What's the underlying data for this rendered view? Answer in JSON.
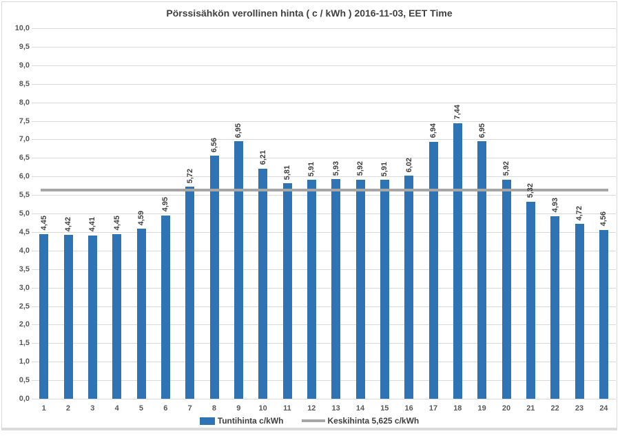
{
  "window": {
    "background": "#FFFFFF",
    "frame_border_color": "#D9D9D9",
    "bottom_strip_color": "#DBDBDB"
  },
  "chart_data": {
    "type": "bar",
    "title": "Pörssisähkön verollinen hinta ( c / kWh ) 2016-11-03, EET Time",
    "title_color": "#404040",
    "categories": [
      "1",
      "2",
      "3",
      "4",
      "5",
      "6",
      "7",
      "8",
      "9",
      "10",
      "11",
      "12",
      "13",
      "14",
      "15",
      "16",
      "17",
      "18",
      "19",
      "20",
      "21",
      "22",
      "23",
      "24"
    ],
    "series": [
      {
        "name": "Tuntihinta c/kWh",
        "color": "#2E74B5",
        "values": [
          4.45,
          4.42,
          4.41,
          4.45,
          4.59,
          4.95,
          5.72,
          6.56,
          6.95,
          6.21,
          5.81,
          5.91,
          5.93,
          5.92,
          5.91,
          6.02,
          6.94,
          7.44,
          6.95,
          5.92,
          5.32,
          4.93,
          4.72,
          4.56
        ]
      }
    ],
    "average_line": {
      "name": "Keskihinta 5,625 c/kWh",
      "value": 5.625,
      "color": "#A6A6A6"
    },
    "xlabel": "",
    "ylabel": "",
    "ylim": [
      0,
      10
    ],
    "ytick_step": 0.5,
    "decimal_separator": ",",
    "grid": true,
    "gridline_color": "#D9D9D9",
    "axis_text_color": "#595959",
    "value_label_color": "#404040",
    "value_labels": "rotated-vertical",
    "legend_position": "bottom"
  },
  "legend": {
    "series_label": "Tuntihinta c/kWh",
    "average_label": "Keskihinta 5,625 c/kWh"
  }
}
